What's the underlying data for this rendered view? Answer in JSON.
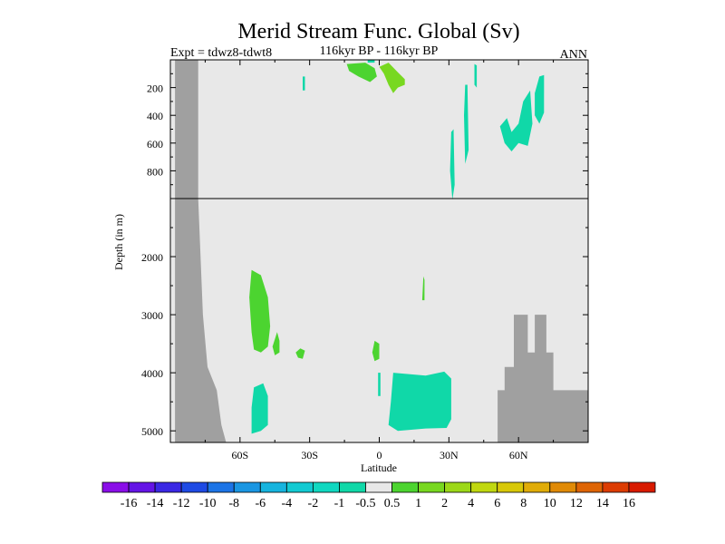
{
  "chart_data": {
    "type": "contour",
    "title": "Merid Stream Func. Global (Sv)",
    "left_string": "Expt = tdwz8-tdwt8",
    "center_string": "116kyr BP - 116kyr BP",
    "right_string": "ANN",
    "xlabel": "Latitude",
    "ylabel": "Depth (in m)",
    "x_ticks": [
      {
        "value": -60,
        "label": "60S"
      },
      {
        "value": -30,
        "label": "30S"
      },
      {
        "value": 0,
        "label": "0"
      },
      {
        "value": 30,
        "label": "30N"
      },
      {
        "value": 60,
        "label": "60N"
      }
    ],
    "y_ticks_upper": [
      {
        "value": 200,
        "label": "200"
      },
      {
        "value": 400,
        "label": "400"
      },
      {
        "value": 600,
        "label": "600"
      },
      {
        "value": 800,
        "label": "800"
      }
    ],
    "y_ticks_lower": [
      {
        "value": 2000,
        "label": "2000"
      },
      {
        "value": 3000,
        "label": "3000"
      },
      {
        "value": 4000,
        "label": "4000"
      },
      {
        "value": 5000,
        "label": "5000"
      }
    ],
    "xlim": [
      -90,
      90
    ],
    "ylim_upper": [
      0,
      1000
    ],
    "ylim_lower": [
      1000,
      5200
    ],
    "colors": {
      "background": "#e8e8e8",
      "land": "#a0a0a0",
      "neg_0_5_to_1": "#10d8a8",
      "pos_0_5_to_1": "#4cd430",
      "pos_1_to_2": "#78d820"
    },
    "colorbar": {
      "labels": [
        "-16",
        "-14",
        "-12",
        "-10",
        "-8",
        "-6",
        "-4",
        "-2",
        "-1",
        "-0.5",
        "0.5",
        "1",
        "2",
        "4",
        "6",
        "8",
        "10",
        "12",
        "14",
        "16"
      ],
      "colors": [
        "#8a0ee8",
        "#6414e6",
        "#3a28e4",
        "#1e4ae4",
        "#1c74e6",
        "#1a96e2",
        "#16b4de",
        "#12cad2",
        "#10d8c0",
        "#10d8a8",
        "#e8e8e8",
        "#4cd430",
        "#78d820",
        "#9cd818",
        "#c0d810",
        "#d8c808",
        "#e0ac08",
        "#e08a06",
        "#de6404",
        "#dc3c02",
        "#d81a00"
      ]
    },
    "land": {
      "left_wall": [
        [
          -88,
          0
        ],
        [
          -78,
          0
        ],
        [
          -78,
          1000
        ],
        [
          -76,
          3000
        ],
        [
          -74,
          3900
        ],
        [
          -70,
          4300
        ],
        [
          -68,
          4900
        ],
        [
          -66,
          5200
        ],
        [
          -88,
          5200
        ]
      ],
      "right_block": [
        [
          51,
          4300
        ],
        [
          54,
          4300
        ],
        [
          54,
          3900
        ],
        [
          58,
          3900
        ],
        [
          58,
          3000
        ],
        [
          64,
          3000
        ],
        [
          64,
          3650
        ],
        [
          67,
          3650
        ],
        [
          67,
          3000
        ],
        [
          72,
          3000
        ],
        [
          72,
          3650
        ],
        [
          75,
          3650
        ],
        [
          75,
          4300
        ],
        [
          90,
          4300
        ],
        [
          90,
          5200
        ],
        [
          51,
          5200
        ]
      ]
    },
    "regions": [
      {
        "cls": "pos_0_5_to_1",
        "points": [
          [
            -55,
            2230
          ],
          [
            -51,
            2320
          ],
          [
            -48,
            2700
          ],
          [
            -47,
            3200
          ],
          [
            -48,
            3550
          ],
          [
            -51,
            3650
          ],
          [
            -54,
            3600
          ],
          [
            -55,
            3300
          ],
          [
            -56,
            2700
          ]
        ]
      },
      {
        "cls": "pos_0_5_to_1",
        "points": [
          [
            -44,
            3300
          ],
          [
            -43,
            3450
          ],
          [
            -43,
            3650
          ],
          [
            -45,
            3700
          ],
          [
            -46,
            3550
          ]
        ]
      },
      {
        "cls": "pos_0_5_to_1",
        "points": [
          [
            -34,
            3580
          ],
          [
            -32,
            3620
          ],
          [
            -33,
            3760
          ],
          [
            -35,
            3740
          ],
          [
            -36,
            3650
          ]
        ]
      },
      {
        "cls": "pos_0_5_to_1",
        "points": [
          [
            -2,
            3450
          ],
          [
            0,
            3500
          ],
          [
            0,
            3760
          ],
          [
            -2,
            3800
          ],
          [
            -3,
            3650
          ]
        ]
      },
      {
        "cls": "pos_0_5_to_1",
        "points": [
          [
            19,
            2340
          ],
          [
            19.5,
            2400
          ],
          [
            19.5,
            2750
          ],
          [
            18.5,
            2750
          ]
        ]
      },
      {
        "cls": "neg_0_5_to_1",
        "points": [
          [
            -54,
            4250
          ],
          [
            -50,
            4180
          ],
          [
            -48,
            4400
          ],
          [
            -48,
            4900
          ],
          [
            -51,
            5000
          ],
          [
            -55,
            5050
          ],
          [
            -55,
            4600
          ]
        ]
      },
      {
        "cls": "neg_0_5_to_1",
        "points": [
          [
            6,
            4000
          ],
          [
            20,
            4050
          ],
          [
            28,
            3980
          ],
          [
            31,
            4100
          ],
          [
            31,
            4800
          ],
          [
            29,
            4950
          ],
          [
            20,
            4960
          ],
          [
            8,
            5000
          ],
          [
            4,
            4900
          ],
          [
            5,
            4500
          ]
        ]
      },
      {
        "cls": "neg_0_5_to_1",
        "points": [
          [
            -0.5,
            4000
          ],
          [
            0.5,
            4000
          ],
          [
            0.5,
            4400
          ],
          [
            -0.5,
            4400
          ]
        ]
      },
      {
        "cls": "pos_0_5_to_1",
        "points": [
          [
            -14,
            30
          ],
          [
            -6,
            20
          ],
          [
            -2,
            60
          ],
          [
            -1,
            120
          ],
          [
            -4,
            160
          ],
          [
            -9,
            120
          ],
          [
            -13,
            80
          ]
        ]
      },
      {
        "cls": "pos_1_to_2",
        "points": [
          [
            0,
            50
          ],
          [
            4,
            20
          ],
          [
            8,
            90
          ],
          [
            11,
            140
          ],
          [
            11,
            180
          ],
          [
            8,
            200
          ],
          [
            6,
            240
          ],
          [
            4,
            180
          ],
          [
            2,
            100
          ]
        ]
      },
      {
        "cls": "neg_0_5_to_1",
        "points": [
          [
            -5,
            0
          ],
          [
            -2,
            0
          ],
          [
            -2,
            20
          ],
          [
            -5,
            20
          ]
        ]
      },
      {
        "cls": "neg_0_5_to_1",
        "points": [
          [
            -33,
            120
          ],
          [
            -32,
            120
          ],
          [
            -32,
            220
          ],
          [
            -33,
            220
          ]
        ]
      },
      {
        "cls": "neg_0_5_to_1",
        "points": [
          [
            31,
            520
          ],
          [
            32,
            500
          ],
          [
            32.5,
            900
          ],
          [
            31.5,
            1020
          ],
          [
            30.5,
            800
          ]
        ]
      },
      {
        "cls": "neg_0_5_to_1",
        "points": [
          [
            37,
            180
          ],
          [
            38,
            180
          ],
          [
            38.5,
            650
          ],
          [
            37,
            750
          ],
          [
            36.5,
            400
          ]
        ]
      },
      {
        "cls": "neg_0_5_to_1",
        "points": [
          [
            41,
            30
          ],
          [
            42,
            40
          ],
          [
            42,
            200
          ],
          [
            41,
            180
          ]
        ]
      },
      {
        "cls": "neg_0_5_to_1",
        "points": [
          [
            52,
            480
          ],
          [
            55,
            420
          ],
          [
            57,
            520
          ],
          [
            60,
            460
          ],
          [
            62,
            300
          ],
          [
            65,
            220
          ],
          [
            66,
            460
          ],
          [
            64,
            620
          ],
          [
            60,
            600
          ],
          [
            57,
            660
          ],
          [
            54,
            600
          ]
        ]
      },
      {
        "cls": "neg_0_5_to_1",
        "points": [
          [
            67,
            240
          ],
          [
            69,
            120
          ],
          [
            71,
            110
          ],
          [
            71,
            380
          ],
          [
            69,
            460
          ],
          [
            67,
            400
          ]
        ]
      }
    ],
    "interface_depth": 1000
  }
}
